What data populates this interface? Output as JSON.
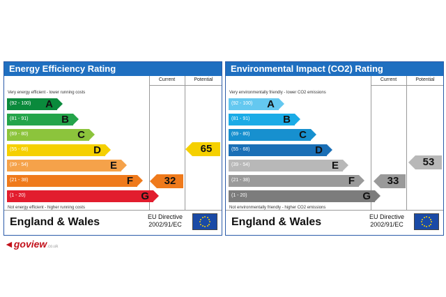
{
  "energy": {
    "title": "Energy Efficiency Rating",
    "col_current": "Current",
    "col_potential": "Potential",
    "top_caption": "Very energy efficient - lower running costs",
    "bottom_caption": "Not energy efficient - higher running costs",
    "bands": [
      {
        "range": "(92 - 100)",
        "letter": "A",
        "color": "#0a8a3c"
      },
      {
        "range": "(81 - 91)",
        "letter": "B",
        "color": "#24a44a"
      },
      {
        "range": "(69 - 80)",
        "letter": "C",
        "color": "#8cc43c"
      },
      {
        "range": "(55 - 68)",
        "letter": "D",
        "color": "#f5d000"
      },
      {
        "range": "(39 - 54)",
        "letter": "E",
        "color": "#f5a24a"
      },
      {
        "range": "(21 - 38)",
        "letter": "F",
        "color": "#ef7a1c"
      },
      {
        "range": "(1 - 20)",
        "letter": "G",
        "color": "#e21d2e"
      }
    ],
    "current": {
      "value": "32",
      "color": "#ef7a1c"
    },
    "potential": {
      "value": "65",
      "color": "#f5d000"
    }
  },
  "environment": {
    "title": "Environmental Impact (CO2) Rating",
    "col_current": "Current",
    "col_potential": "Potential",
    "top_caption": "Very environmentally friendly - lower CO2 emissions",
    "bottom_caption": "Not environmentally friendly - higher CO2 emissions",
    "bands": [
      {
        "range": "(92 - 100)",
        "letter": "A",
        "color": "#64c8f0"
      },
      {
        "range": "(81 - 91)",
        "letter": "B",
        "color": "#1aabe6"
      },
      {
        "range": "(69 - 80)",
        "letter": "C",
        "color": "#1790cf"
      },
      {
        "range": "(55 - 68)",
        "letter": "D",
        "color": "#1a6fb6"
      },
      {
        "range": "(39 - 54)",
        "letter": "E",
        "color": "#b8b8b8"
      },
      {
        "range": "(21 - 38)",
        "letter": "F",
        "color": "#9a9a9a"
      },
      {
        "range": "(1 - 20)",
        "letter": "G",
        "color": "#7c7c7c"
      }
    ],
    "current": {
      "value": "33",
      "color": "#9a9a9a"
    },
    "potential": {
      "value": "53",
      "color": "#b8b8b8"
    }
  },
  "footer": {
    "country": "England & Wales",
    "directive_line1": "EU Directive",
    "directive_line2": "2002/91/EC"
  },
  "logo": {
    "mark": "◄",
    "name": "goview",
    "domain": ".co.uk"
  }
}
